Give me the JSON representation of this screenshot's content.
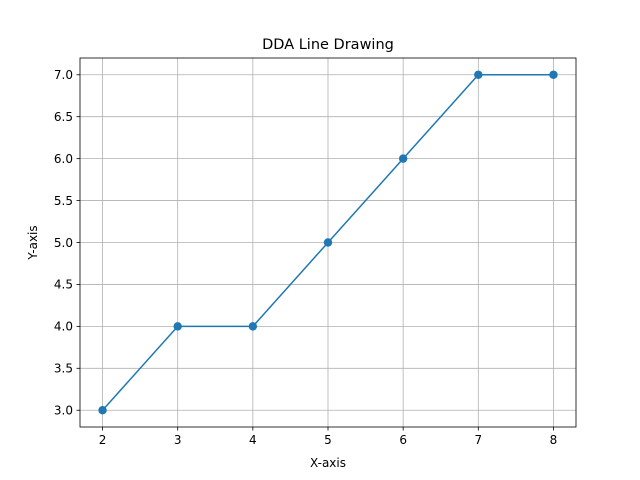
{
  "chart_data": {
    "type": "line",
    "title": "DDA Line Drawing",
    "xlabel": "X-axis",
    "ylabel": "Y-axis",
    "xlim": [
      1.7,
      8.3
    ],
    "ylim": [
      2.8,
      7.2
    ],
    "xticks": [
      "2",
      "3",
      "4",
      "5",
      "6",
      "7",
      "8"
    ],
    "yticks": [
      "3.0",
      "3.5",
      "4.0",
      "4.5",
      "5.0",
      "5.5",
      "6.0",
      "6.5",
      "7.0"
    ],
    "grid": true,
    "legend": "none",
    "series": [
      {
        "color": "#1f77b4",
        "marker": "circle",
        "x": [
          2,
          3,
          4,
          5,
          6,
          7,
          8
        ],
        "y": [
          3,
          4,
          4,
          5,
          6,
          7,
          7
        ]
      }
    ]
  }
}
